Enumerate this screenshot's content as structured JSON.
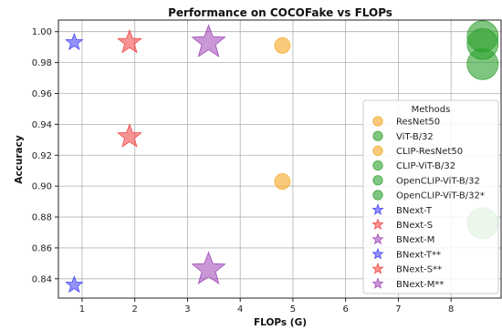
{
  "chart_data": {
    "type": "scatter",
    "title": "Performance on COCOFake vs FLOPs",
    "xlabel": "FLOPs (G)",
    "ylabel": "Accuracy",
    "xlim": [
      0.55,
      8.95
    ],
    "ylim": [
      0.8275,
      1.0075
    ],
    "xticks": [
      1,
      2,
      3,
      4,
      5,
      6,
      7,
      8
    ],
    "yticks": [
      0.84,
      0.86,
      0.88,
      0.9,
      0.92,
      0.94,
      0.96,
      0.98,
      1.0
    ],
    "ytick_labels": [
      "0.84",
      "0.86",
      "0.88",
      "0.90",
      "0.92",
      "0.94",
      "0.96",
      "0.98",
      "1.00"
    ],
    "grid": true,
    "legend_title": "Methods",
    "legend_position": "right",
    "series": [
      {
        "name": "ResNet50",
        "marker": "circle",
        "color": "#f5a623",
        "size": "medium",
        "points": [
          [
            4.8,
            0.991
          ],
          [
            4.8,
            0.903
          ]
        ]
      },
      {
        "name": "ViT-B/32",
        "marker": "circle",
        "color": "#2ca02c",
        "size": "large",
        "points": [
          [
            8.6,
            0.997
          ]
        ]
      },
      {
        "name": "CLIP-ResNet50",
        "marker": "circle",
        "color": "#f5a623",
        "size": "medium",
        "points": []
      },
      {
        "name": "CLIP-ViT-B/32",
        "marker": "circle",
        "color": "#2ca02c",
        "size": "large",
        "points": [
          [
            8.6,
            0.992
          ]
        ]
      },
      {
        "name": "OpenCLIP-ViT-B/32",
        "marker": "circle",
        "color": "#2ca02c",
        "size": "large",
        "points": [
          [
            8.6,
            0.979
          ]
        ]
      },
      {
        "name": "OpenCLIP-ViT-B/32*",
        "marker": "circle",
        "color": "#2ca02c",
        "size": "large",
        "points": [
          [
            8.6,
            0.876
          ]
        ]
      },
      {
        "name": "BNext-T",
        "marker": "star",
        "color": "#3a3af5",
        "size": "small",
        "points": [
          [
            0.85,
            0.993
          ]
        ]
      },
      {
        "name": "BNext-S",
        "marker": "star",
        "color": "#f03c3c",
        "size": "medium",
        "points": [
          [
            1.9,
            0.993
          ]
        ]
      },
      {
        "name": "BNext-M",
        "marker": "star",
        "color": "#9c3fb5",
        "size": "large",
        "points": [
          [
            3.4,
            0.993
          ]
        ]
      },
      {
        "name": "BNext-T**",
        "marker": "star",
        "color": "#3a3af5",
        "size": "small",
        "points": [
          [
            0.85,
            0.836
          ]
        ]
      },
      {
        "name": "BNext-S**",
        "marker": "star",
        "color": "#f03c3c",
        "size": "medium",
        "points": [
          [
            1.9,
            0.932
          ]
        ]
      },
      {
        "name": "BNext-M**",
        "marker": "star",
        "color": "#9c3fb5",
        "size": "large",
        "points": [
          [
            3.4,
            0.846
          ]
        ]
      }
    ]
  }
}
